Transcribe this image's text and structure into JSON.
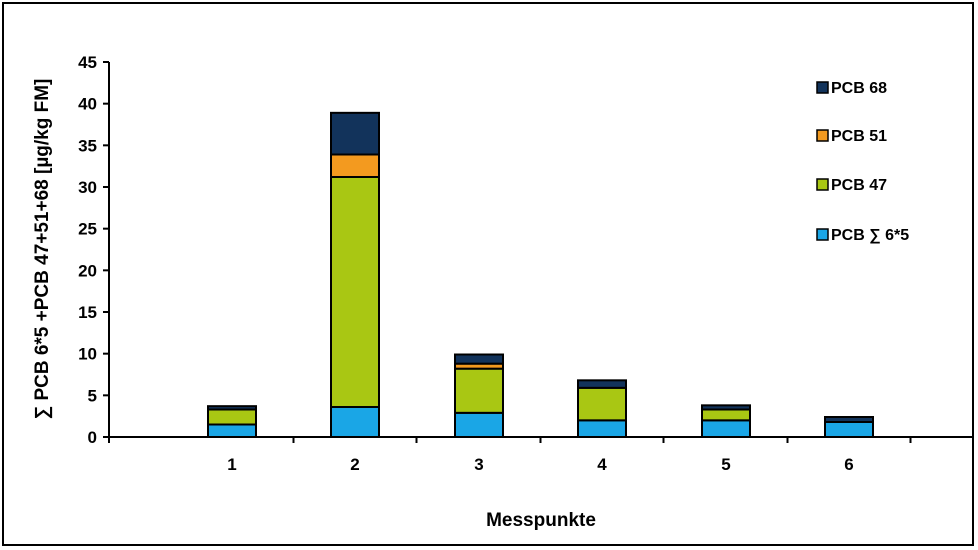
{
  "chart_data": {
    "type": "bar",
    "stacked": true,
    "title": "",
    "xlabel": "Messpunkte",
    "ylabel": "∑ PCB 6*5 +PCB 47+51+68 [µg/kg FM]",
    "categories": [
      "1",
      "2",
      "3",
      "4",
      "5",
      "6"
    ],
    "ylim": [
      0,
      45
    ],
    "yticks": [
      "0",
      "5",
      "10",
      "15",
      "20",
      "25",
      "30",
      "35",
      "40",
      "45"
    ],
    "grid": false,
    "legend_position": "top-right",
    "series": [
      {
        "name": "PCB ∑ 6*5",
        "color": "#1AA6E6",
        "values": [
          1.5,
          3.6,
          2.9,
          2.0,
          2.0,
          1.8
        ]
      },
      {
        "name": "PCB 47",
        "color": "#A9C713",
        "values": [
          1.8,
          27.6,
          5.3,
          3.9,
          1.3,
          0.0
        ]
      },
      {
        "name": "PCB 51",
        "color": "#F39A1F",
        "values": [
          0.0,
          2.7,
          0.6,
          0.0,
          0.0,
          0.0
        ]
      },
      {
        "name": "PCB 68",
        "color": "#12335B",
        "values": [
          0.4,
          5.0,
          1.1,
          0.9,
          0.5,
          0.6
        ]
      }
    ],
    "legend_order": [
      "PCB 68",
      "PCB 51",
      "PCB 47",
      "PCB ∑ 6*5"
    ]
  }
}
